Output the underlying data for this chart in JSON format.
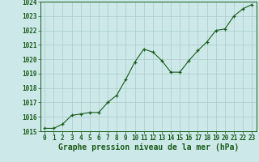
{
  "x": [
    0,
    1,
    2,
    3,
    4,
    5,
    6,
    7,
    8,
    9,
    10,
    11,
    12,
    13,
    14,
    15,
    16,
    17,
    18,
    19,
    20,
    21,
    22,
    23
  ],
  "y": [
    1015.2,
    1015.2,
    1015.5,
    1016.1,
    1016.2,
    1016.3,
    1016.3,
    1017.0,
    1017.5,
    1018.6,
    1019.8,
    1020.7,
    1020.5,
    1019.9,
    1019.1,
    1019.1,
    1019.9,
    1020.6,
    1021.2,
    1022.0,
    1022.1,
    1023.0,
    1023.5,
    1023.8
  ],
  "ylim": [
    1015,
    1024
  ],
  "yticks": [
    1015,
    1016,
    1017,
    1018,
    1019,
    1020,
    1021,
    1022,
    1023,
    1024
  ],
  "xticks": [
    0,
    1,
    2,
    3,
    4,
    5,
    6,
    7,
    8,
    9,
    10,
    11,
    12,
    13,
    14,
    15,
    16,
    17,
    18,
    19,
    20,
    21,
    22,
    23
  ],
  "xlabel": "Graphe pression niveau de la mer (hPa)",
  "line_color": "#1a5c1a",
  "marker": "+",
  "bg_color": "#cce8e8",
  "grid_color": "#aacccc",
  "tick_label_color": "#1a5c1a",
  "xlabel_color": "#1a5c1a",
  "tick_fontsize": 5.5,
  "xlabel_fontsize": 7.0
}
